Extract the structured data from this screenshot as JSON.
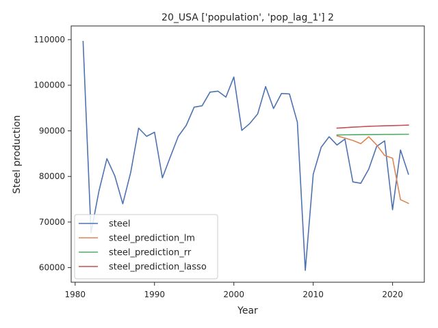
{
  "chart_data": {
    "type": "line",
    "title": "20_USA ['population', 'pop_lag_1'] 2",
    "xlabel": "Year",
    "ylabel": "Steel production",
    "xlim": [
      1979.5,
      2024
    ],
    "ylim": [
      56800,
      113000
    ],
    "xticks": [
      1980,
      1990,
      2000,
      2010,
      2020
    ],
    "yticks": [
      60000,
      70000,
      80000,
      90000,
      100000,
      110000
    ],
    "grid": false,
    "legend_position": "lower-left",
    "series": [
      {
        "name": "steel",
        "color": "#4c72b0",
        "x": [
          1981,
          1982,
          1983,
          1984,
          1985,
          1986,
          1987,
          1988,
          1989,
          1990,
          1991,
          1992,
          1993,
          1994,
          1995,
          1996,
          1997,
          1998,
          1999,
          2000,
          2001,
          2002,
          2003,
          2004,
          2005,
          2006,
          2007,
          2008,
          2009,
          2010,
          2011,
          2012,
          2013,
          2014,
          2015,
          2016,
          2017,
          2018,
          2019,
          2020,
          2021,
          2022
        ],
        "values": [
          109600,
          67700,
          76800,
          83900,
          80100,
          74000,
          80900,
          90600,
          88800,
          89700,
          79700,
          84300,
          88800,
          91200,
          95200,
          95500,
          98500,
          98700,
          97400,
          101800,
          90100,
          91600,
          93700,
          99700,
          94900,
          98200,
          98100,
          91900,
          59400,
          80500,
          86400,
          88700,
          86900,
          88200,
          78800,
          78500,
          81600,
          86600,
          87800,
          72700,
          85800,
          80500
        ]
      },
      {
        "name": "steel_prediction_lm",
        "color": "#dd8452",
        "x": [
          2013,
          2014,
          2015,
          2016,
          2017,
          2018,
          2019,
          2020,
          2021,
          2022
        ],
        "values": [
          88900,
          88400,
          87900,
          87200,
          88700,
          86900,
          84600,
          84000,
          74900,
          74100
        ]
      },
      {
        "name": "steel_prediction_rr",
        "color": "#55a868",
        "x": [
          2013,
          2014,
          2015,
          2016,
          2017,
          2018,
          2019,
          2020,
          2021,
          2022
        ],
        "values": [
          89100,
          89120,
          89140,
          89160,
          89180,
          89200,
          89210,
          89220,
          89230,
          89250
        ]
      },
      {
        "name": "steel_prediction_lasso",
        "color": "#c44e52",
        "x": [
          2013,
          2014,
          2015,
          2016,
          2017,
          2018,
          2019,
          2020,
          2021,
          2022
        ],
        "values": [
          90600,
          90700,
          90800,
          90900,
          91000,
          91050,
          91100,
          91150,
          91200,
          91250
        ]
      }
    ]
  }
}
